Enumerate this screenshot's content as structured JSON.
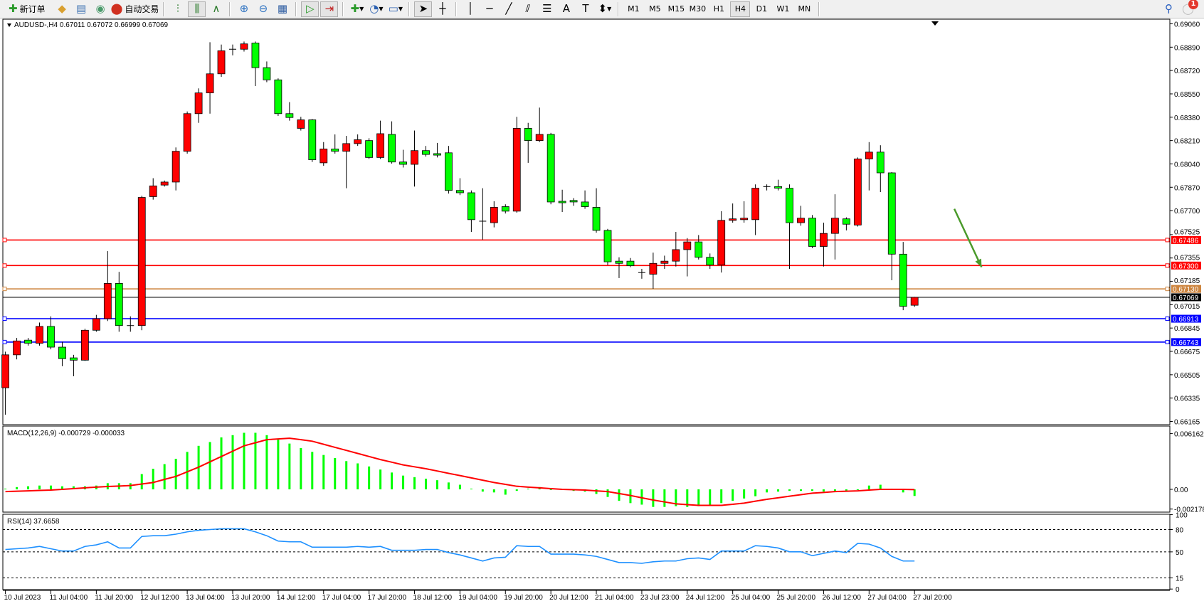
{
  "toolbar": {
    "new_order": "新订单",
    "auto_trading": "自动交易",
    "icons": [
      "new-order-icon",
      "history-center-icon",
      "options-icon",
      "signals-icon",
      "auto-trading-icon",
      "bar-chart-icon",
      "candlestick-icon",
      "line-chart-icon",
      "zoom-in-icon",
      "zoom-out-icon",
      "tile-windows-icon",
      "chart-shift-icon",
      "autoscroll-icon",
      "indicators-icon",
      "periods-icon",
      "templates-icon",
      "cursor-icon",
      "crosshair-icon",
      "vertical-line-icon",
      "horizontal-line-icon",
      "trendline-icon",
      "equidistant-channel-icon",
      "fibonacci-icon",
      "text-icon",
      "text-label-icon",
      "arrows-icon"
    ],
    "timeframes": [
      "M1",
      "M5",
      "M15",
      "M30",
      "H1",
      "H4",
      "D1",
      "W1",
      "MN"
    ],
    "selected_timeframe": "H4",
    "notifications": "1"
  },
  "chart_data": [
    {
      "type": "candlestick",
      "title": "AUDUSD-,H4  0.67011 0.67072 0.66999 0.67069",
      "up_color": "#ff0000",
      "down_color": "#00ff00",
      "ylim": [
        0.66165,
        0.6906
      ],
      "y_ticks": [
        "0.69060",
        "0.68890",
        "0.68720",
        "0.68550",
        "0.68380",
        "0.68210",
        "0.68040",
        "0.67870",
        "0.67700",
        "0.67525",
        "0.67355",
        "0.67185",
        "0.67015",
        "0.66845",
        "0.66675",
        "0.66505",
        "0.66335",
        "0.66165"
      ],
      "x_ticks": [
        "10 Jul 2023",
        "11 Jul 04:00",
        "11 Jul 20:00",
        "12 Jul 12:00",
        "13 Jul 04:00",
        "13 Jul 20:00",
        "14 Jul 12:00",
        "17 Jul 04:00",
        "17 Jul 20:00",
        "18 Jul 12:00",
        "19 Jul 04:00",
        "19 Jul 20:00",
        "20 Jul 12:00",
        "21 Jul 04:00",
        "23 Jul 23:00",
        "24 Jul 12:00",
        "25 Jul 04:00",
        "25 Jul 20:00",
        "26 Jul 12:00",
        "27 Jul 04:00",
        "27 Jul 20:00"
      ],
      "ohlc": [
        [
          0.6641,
          0.66673,
          0.66214,
          0.6665
        ],
        [
          0.6665,
          0.66773,
          0.66617,
          0.66751
        ],
        [
          0.66757,
          0.66773,
          0.66717,
          0.66734
        ],
        [
          0.66734,
          0.66885,
          0.66717,
          0.66857
        ],
        [
          0.66857,
          0.6693,
          0.6669,
          0.66706
        ],
        [
          0.66706,
          0.66745,
          0.66567,
          0.66622
        ],
        [
          0.66628,
          0.6665,
          0.66494,
          0.66611
        ],
        [
          0.66611,
          0.6684,
          0.66606,
          0.66829
        ],
        [
          0.66829,
          0.66941,
          0.66818,
          0.66913
        ],
        [
          0.66913,
          0.67405,
          0.66896,
          0.6717
        ],
        [
          0.6717,
          0.67254,
          0.66818,
          0.66863
        ],
        [
          0.66863,
          0.6693,
          0.66818,
          0.66857
        ],
        [
          0.66863,
          0.67808,
          0.66829,
          0.67796
        ],
        [
          0.67802,
          0.67936,
          0.6778,
          0.6788
        ],
        [
          0.67886,
          0.67919,
          0.67875,
          0.67908
        ],
        [
          0.67908,
          0.6816,
          0.67847,
          0.68132
        ],
        [
          0.68132,
          0.68422,
          0.68115,
          0.68406
        ],
        [
          0.68406,
          0.6859,
          0.68339,
          0.68557
        ],
        [
          0.68557,
          0.68926,
          0.68406,
          0.68696
        ],
        [
          0.68696,
          0.68909,
          0.68674,
          0.68864
        ],
        [
          0.6887,
          0.68909,
          0.68831,
          0.68875
        ],
        [
          0.68875,
          0.68931,
          0.68858,
          0.68914
        ],
        [
          0.6892,
          0.68931,
          0.68607,
          0.68741
        ],
        [
          0.68741,
          0.68786,
          0.68635,
          0.68652
        ],
        [
          0.68652,
          0.68663,
          0.68389,
          0.68406
        ],
        [
          0.68406,
          0.6849,
          0.68355,
          0.68378
        ],
        [
          0.68299,
          0.68383,
          0.68283,
          0.68361
        ],
        [
          0.68361,
          0.68367,
          0.68054,
          0.6807
        ],
        [
          0.68048,
          0.68199,
          0.68026,
          0.68149
        ],
        [
          0.68149,
          0.68255,
          0.68115,
          0.68132
        ],
        [
          0.68132,
          0.68244,
          0.67863,
          0.68188
        ],
        [
          0.68188,
          0.68255,
          0.68171,
          0.68216
        ],
        [
          0.6821,
          0.68227,
          0.68076,
          0.68087
        ],
        [
          0.68087,
          0.68355,
          0.68076,
          0.6826
        ],
        [
          0.68255,
          0.6835,
          0.68042,
          0.68054
        ],
        [
          0.68054,
          0.68143,
          0.68014,
          0.68037
        ],
        [
          0.68037,
          0.68283,
          0.67875,
          0.68137
        ],
        [
          0.68137,
          0.68171,
          0.68093,
          0.68109
        ],
        [
          0.68115,
          0.68193,
          0.68087,
          0.68104
        ],
        [
          0.68121,
          0.68171,
          0.67824,
          0.67847
        ],
        [
          0.67847,
          0.67936,
          0.67813,
          0.6783
        ],
        [
          0.6783,
          0.67847,
          0.67545,
          0.67634
        ],
        [
          0.67623,
          0.67863,
          0.67489,
          0.67617
        ],
        [
          0.67612,
          0.67768,
          0.67578,
          0.67724
        ],
        [
          0.67729,
          0.67746,
          0.67679,
          0.67696
        ],
        [
          0.67696,
          0.68383,
          0.67685,
          0.68299
        ],
        [
          0.68299,
          0.68339,
          0.68048,
          0.6821
        ],
        [
          0.6821,
          0.6845,
          0.68199,
          0.68255
        ],
        [
          0.68255,
          0.68266,
          0.67746,
          0.67763
        ],
        [
          0.67768,
          0.67852,
          0.6769,
          0.67757
        ],
        [
          0.67774,
          0.67791,
          0.67735,
          0.67763
        ],
        [
          0.67763,
          0.67847,
          0.67713,
          0.67729
        ],
        [
          0.67724,
          0.67863,
          0.67539,
          0.67556
        ],
        [
          0.67556,
          0.67567,
          0.67304,
          0.67327
        ],
        [
          0.67332,
          0.6736,
          0.67209,
          0.67316
        ],
        [
          0.67332,
          0.67355,
          0.67288,
          0.67299
        ],
        [
          0.67249,
          0.67276,
          0.67204,
          0.67243
        ],
        [
          0.67237,
          0.67394,
          0.67131,
          0.67316
        ],
        [
          0.67316,
          0.67372,
          0.67276,
          0.67332
        ],
        [
          0.67332,
          0.67545,
          0.67293,
          0.67416
        ],
        [
          0.67416,
          0.675,
          0.67221,
          0.67472
        ],
        [
          0.67472,
          0.67522,
          0.67344,
          0.6736
        ],
        [
          0.6736,
          0.67388,
          0.67276,
          0.67304
        ],
        [
          0.67304,
          0.67696,
          0.67249,
          0.67629
        ],
        [
          0.67629,
          0.67752,
          0.67612,
          0.6764
        ],
        [
          0.67634,
          0.67768,
          0.67612,
          0.67645
        ],
        [
          0.67634,
          0.67891,
          0.67522,
          0.67863
        ],
        [
          0.67869,
          0.67891,
          0.67847,
          0.67875
        ],
        [
          0.67875,
          0.67925,
          0.67847,
          0.67863
        ],
        [
          0.67863,
          0.67891,
          0.67276,
          0.67612
        ],
        [
          0.67612,
          0.67735,
          0.6759,
          0.67645
        ],
        [
          0.67645,
          0.67668,
          0.67427,
          0.67439
        ],
        [
          0.67439,
          0.67612,
          0.67293,
          0.67534
        ],
        [
          0.67534,
          0.67819,
          0.67344,
          0.67645
        ],
        [
          0.6764,
          0.67651,
          0.67556,
          0.67601
        ],
        [
          0.67595,
          0.68087,
          0.67584,
          0.68076
        ],
        [
          0.68076,
          0.68199,
          0.67847,
          0.68126
        ],
        [
          0.68126,
          0.68176,
          0.67835,
          0.67975
        ],
        [
          0.67975,
          0.67981,
          0.67193,
          0.67383
        ],
        [
          0.67383,
          0.67472,
          0.66975,
          0.67003
        ],
        [
          0.67011,
          0.67072,
          0.66999,
          0.67069
        ]
      ],
      "horizontal_lines": [
        {
          "price": 0.67486,
          "label": "0.67486",
          "color": "#ff0000"
        },
        {
          "price": 0.673,
          "label": "0.67300",
          "color": "#ff0000"
        },
        {
          "price": 0.6713,
          "label": "0.67130",
          "color": "#cd853f"
        },
        {
          "price": 0.66913,
          "label": "0.66913",
          "color": "#0000ff"
        },
        {
          "price": 0.66743,
          "label": "0.66743",
          "color": "#0000ff"
        }
      ],
      "current_price": {
        "price": 0.67069,
        "label": "0.67069",
        "color": "#000000"
      },
      "arrow": {
        "from_bar": 84.5,
        "from_price": 0.67713,
        "to_bar": 86.9,
        "to_price": 0.67288,
        "color": "#4a9a2a"
      }
    },
    {
      "type": "bar+line",
      "title": "MACD(12,26,9) -0.000729 -0.000033",
      "ylim": [
        -0.002178,
        0.006162
      ],
      "y_ticks": [
        "0.006162",
        "0.00",
        "-0.002178"
      ],
      "histogram_color": "#00ff00",
      "signal_color": "#ff0000",
      "histogram": [
        8e-05,
        0.00025,
        0.00034,
        0.00042,
        0.00042,
        0.00034,
        0.00034,
        0.00034,
        0.00042,
        0.00068,
        0.00068,
        0.00068,
        0.00169,
        0.00228,
        0.00279,
        0.00338,
        0.00414,
        0.00481,
        0.00523,
        0.00574,
        0.00599,
        0.00625,
        0.00625,
        0.00599,
        0.00549,
        0.00506,
        0.00456,
        0.00414,
        0.0038,
        0.00346,
        0.00312,
        0.00287,
        0.00253,
        0.00219,
        0.00186,
        0.00152,
        0.00135,
        0.00118,
        0.00101,
        0.00076,
        0.00051,
        8e-05,
        -0.00025,
        -0.00034,
        -0.00059,
        -0.00017,
        8e-05,
        0.00025,
        0,
        0,
        -0.00017,
        -0.00025,
        -0.00051,
        -0.00084,
        -0.00127,
        -0.00152,
        -0.00169,
        -0.00194,
        -0.00194,
        -0.00186,
        -0.00194,
        -0.00186,
        -0.00169,
        -0.00152,
        -0.00127,
        -0.00101,
        -0.00076,
        -0.00034,
        -0.00025,
        -0.00017,
        -0.00017,
        -0.00017,
        -0.00025,
        -0.00025,
        -0.00017,
        0,
        0.00042,
        0.00051,
        8e-05,
        -0.00034,
        -0.000729
      ],
      "signal": [
        -0.00025,
        -0.00021,
        -0.00017,
        -0.00012,
        -8e-05,
        0,
        8e-05,
        0.00017,
        0.00025,
        0.00031,
        0.00036,
        0.00042,
        0.00059,
        0.00076,
        0.0011,
        0.00143,
        0.00194,
        0.00245,
        0.00304,
        0.00363,
        0.00422,
        0.00481,
        0.00515,
        0.00549,
        0.00557,
        0.00565,
        0.00549,
        0.00532,
        0.00498,
        0.00464,
        0.00431,
        0.00397,
        0.00363,
        0.00329,
        0.003,
        0.0027,
        0.00249,
        0.00228,
        0.00203,
        0.00177,
        0.00152,
        0.00127,
        0.00101,
        0.00076,
        0.00055,
        0.00034,
        0.00025,
        0.00017,
        8e-05,
        0,
        -4e-05,
        -8e-05,
        -0.00017,
        -0.00025,
        -0.00046,
        -0.00068,
        -0.00093,
        -0.00118,
        -0.00139,
        -0.0016,
        -0.00169,
        -0.00177,
        -0.00177,
        -0.00177,
        -0.00165,
        -0.00152,
        -0.00131,
        -0.0011,
        -0.00093,
        -0.00076,
        -0.00059,
        -0.00042,
        -0.00034,
        -0.00025,
        -0.00021,
        -0.00017,
        -8e-05,
        0,
        0,
        0,
        -3.3e-05
      ]
    },
    {
      "type": "line",
      "title": "RSI(14) 37.6658",
      "ylim": [
        0,
        100
      ],
      "y_ticks": [
        "100",
        "80",
        "50",
        "15",
        "0"
      ],
      "levels": [
        80,
        50,
        15
      ],
      "color": "#1e90ff",
      "values": [
        53.2,
        54.2,
        55.2,
        57.3,
        54.2,
        51.1,
        51.1,
        57.3,
        59.4,
        63.5,
        55.2,
        55.2,
        70.7,
        71.7,
        71.7,
        73.8,
        76.9,
        79.0,
        80.0,
        81.0,
        81.0,
        81.0,
        76.9,
        71.7,
        64.5,
        63.5,
        63.5,
        56.3,
        56.3,
        56.3,
        56.3,
        57.3,
        56.3,
        57.3,
        52.1,
        52.1,
        52.1,
        53.2,
        53.2,
        49.0,
        45.9,
        41.8,
        37.7,
        41.8,
        42.8,
        58.3,
        57.3,
        57.3,
        47.0,
        47.0,
        47.0,
        45.9,
        43.9,
        39.8,
        35.6,
        35.6,
        34.6,
        36.7,
        37.7,
        37.7,
        40.8,
        41.8,
        39.8,
        51.1,
        51.1,
        51.1,
        58.3,
        57.3,
        55.2,
        50.1,
        50.1,
        44.9,
        48.0,
        51.1,
        49.0,
        61.4,
        60.4,
        55.2,
        43.9,
        37.7,
        37.7
      ]
    }
  ]
}
